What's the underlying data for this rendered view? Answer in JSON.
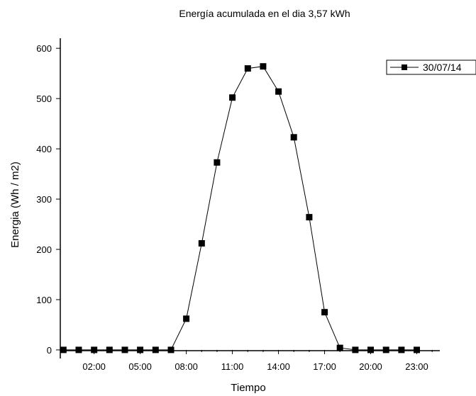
{
  "chart_data": {
    "type": "line",
    "title": "Energía acumulada en el dia 3,57 kWh",
    "xlabel": "Tiempo",
    "ylabel": "Energia (Wh / m2)",
    "x_ticks": [
      "02:00",
      "05:00",
      "08:00",
      "11:00",
      "14:00",
      "17:00",
      "20:00",
      "23:00"
    ],
    "x_tick_values": [
      2,
      5,
      8,
      11,
      14,
      17,
      20,
      23
    ],
    "y_ticks": [
      0,
      100,
      200,
      300,
      400,
      500,
      600
    ],
    "xlim": [
      -0.2,
      24.5
    ],
    "ylim": [
      -17,
      620
    ],
    "grid": false,
    "legend_position": "top-right",
    "series": [
      {
        "name": "30/07/14",
        "marker": "square",
        "color": "#000000",
        "x": [
          0,
          1,
          2,
          3,
          4,
          5,
          6,
          7,
          8,
          9,
          10,
          11,
          12,
          13,
          14,
          15,
          16,
          17,
          18,
          19,
          20,
          21,
          22,
          23
        ],
        "y": [
          0,
          0,
          0,
          0,
          0,
          0,
          0,
          0,
          62,
          212,
          373,
          502,
          560,
          564,
          514,
          423,
          264,
          75,
          4,
          0,
          0,
          0,
          0,
          0
        ]
      }
    ]
  }
}
